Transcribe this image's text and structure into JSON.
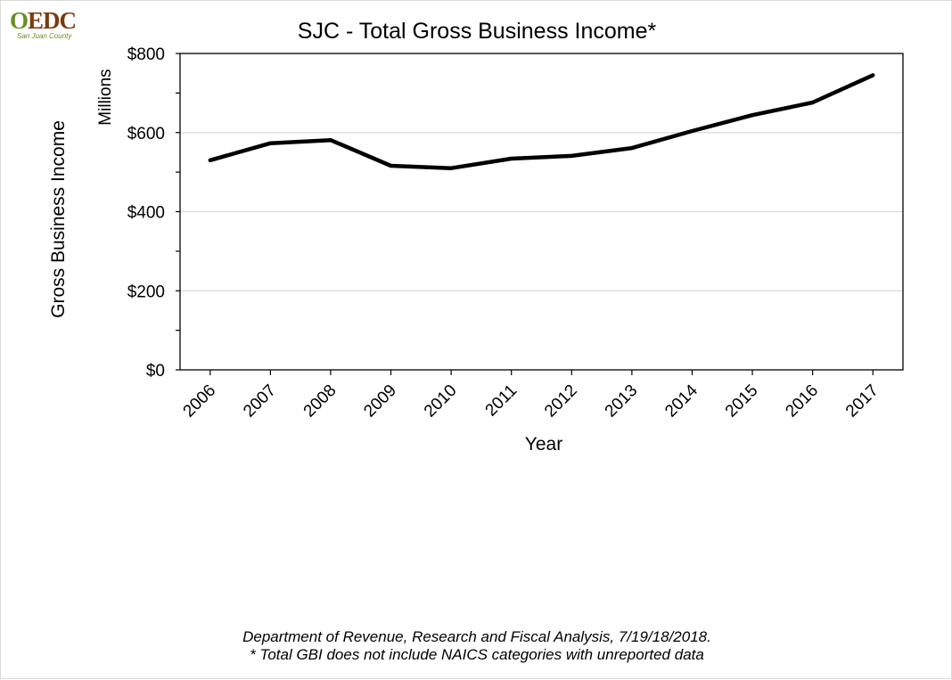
{
  "logo": {
    "main_text": "EDC",
    "sub_text": "San Juan County"
  },
  "chart_data": {
    "type": "line",
    "title": "SJC - Total Gross Business Income*",
    "xlabel": "Year",
    "ylabel": "Gross Business Income",
    "y_unit_label": "Millions",
    "categories": [
      "2006",
      "2007",
      "2008",
      "2009",
      "2010",
      "2011",
      "2012",
      "2013",
      "2014",
      "2015",
      "2016",
      "2017"
    ],
    "series": [
      {
        "values": [
          530,
          573,
          581,
          516,
          510,
          534,
          541,
          561,
          604,
          644,
          676,
          745
        ]
      }
    ],
    "ylim": [
      0,
      800
    ],
    "yticks": [
      0,
      200,
      400,
      600,
      800
    ],
    "ytick_labels": [
      "$0",
      "$200",
      "$400",
      "$600",
      "$800"
    ],
    "grid": true,
    "line_color": "#000000",
    "grid_color": "#d9d9d9"
  },
  "footnotes": {
    "source": "Department of Revenue, Research and Fiscal Analysis, 7/19/18/2018.",
    "note": "* Total GBI does not include NAICS categories with unreported data"
  }
}
